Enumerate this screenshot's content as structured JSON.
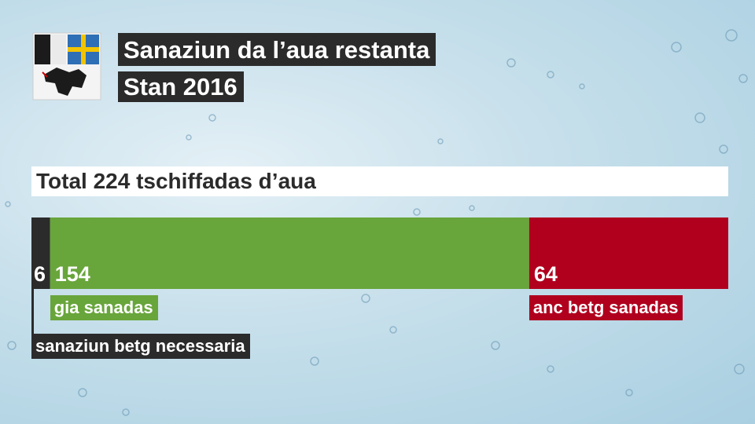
{
  "chart_data": {
    "type": "stacked-bar",
    "title": "Sanaziun da l’aua restanta",
    "subtitle": "Stan 2016",
    "annotation": "Total 224 tschiffadas d’aua",
    "series": [
      {
        "name": "sanaziun betg necessaria",
        "color": "#2b2b2b",
        "values": [
          6
        ]
      },
      {
        "name": "gia sanadas",
        "color": "#68a53b",
        "values": [
          154
        ]
      },
      {
        "name": "anc betg sanadas",
        "color": "#b0001e",
        "values": [
          64
        ]
      }
    ]
  }
}
